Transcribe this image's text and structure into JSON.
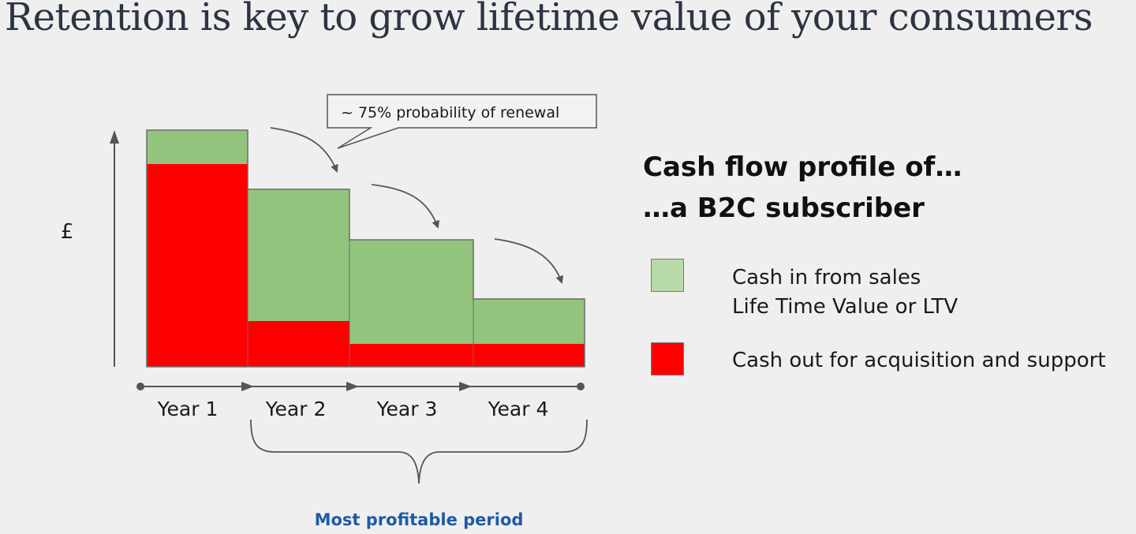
{
  "title": "Retention is key to grow lifetime value of your consumers",
  "callout": "~ 75% probability of renewal",
  "y_axis_symbol": "£",
  "years": [
    "Year 1",
    "Year 2",
    "Year 3",
    "Year 4"
  ],
  "bracket_label": "Most profitable period",
  "heading": {
    "line1": "Cash flow profile of…",
    "line2": "…a B2C subscriber"
  },
  "legend": [
    {
      "lines": [
        "Cash in from sales",
        "Life Time Value or LTV"
      ],
      "color": "#b7dba8"
    },
    {
      "lines": [
        "Cash out for acquisition and support"
      ],
      "color": "#ff0000"
    }
  ],
  "colors": {
    "cash_in": "#93c47d",
    "cash_out": "#ff0000",
    "accent_text": "#1f5aa6"
  }
}
